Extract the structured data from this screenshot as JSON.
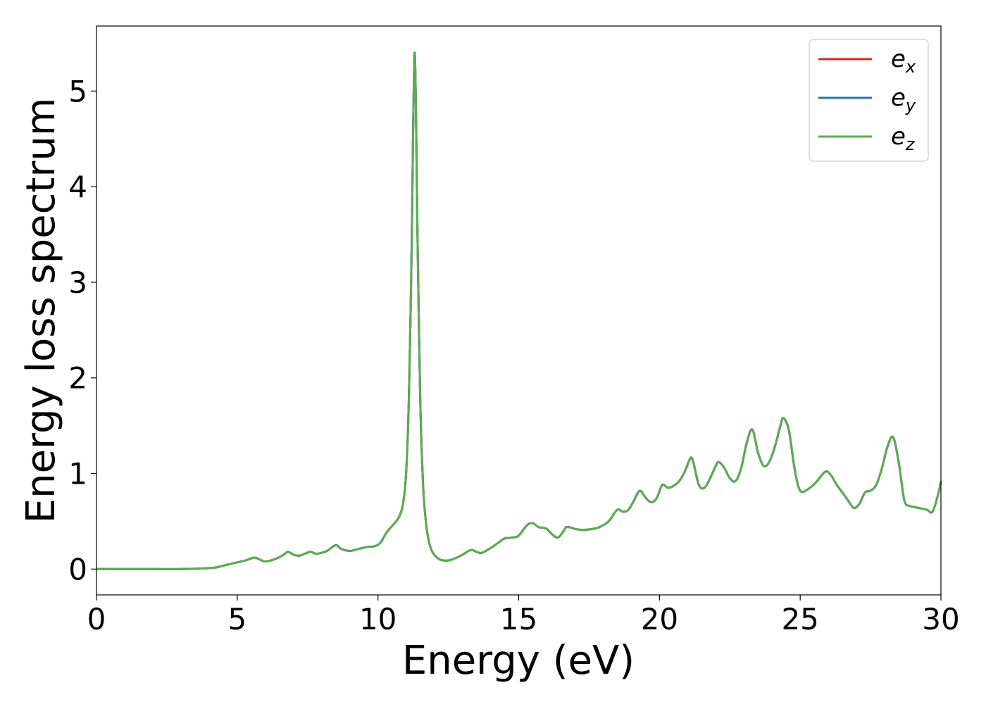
{
  "chart_data": {
    "type": "line",
    "title": "",
    "xlabel": "Energy (eV)",
    "ylabel": "Energy loss spectrum",
    "xlim": [
      0,
      30
    ],
    "ylim": [
      -0.27,
      5.68
    ],
    "xticks": [
      0,
      5,
      10,
      15,
      20,
      25,
      30
    ],
    "yticks": [
      0,
      1,
      2,
      3,
      4,
      5
    ],
    "grid": false,
    "legend": "top-right",
    "series": [
      {
        "name_base": "e",
        "name_sub": "x",
        "color": "#d62728"
      },
      {
        "name_base": "e",
        "name_sub": "y",
        "color": "#1f77b4"
      },
      {
        "name_base": "e",
        "name_sub": "z",
        "color": "#5aad50"
      }
    ],
    "shared_curve": {
      "x": [
        0,
        1,
        2,
        3,
        4,
        4.3,
        4.7,
        5,
        5.3,
        5.6,
        5.8,
        6.0,
        6.3,
        6.6,
        6.8,
        7.0,
        7.2,
        7.4,
        7.6,
        7.8,
        8.0,
        8.2,
        8.5,
        8.7,
        9.0,
        9.3,
        9.6,
        9.9,
        10.1,
        10.3,
        10.5,
        10.7,
        10.8,
        10.9,
        11.0,
        11.1,
        11.2,
        11.25,
        11.3,
        11.35,
        11.4,
        11.5,
        11.6,
        11.7,
        11.8,
        11.9,
        12.0,
        12.2,
        12.5,
        12.8,
        13.0,
        13.3,
        13.5,
        13.7,
        14.0,
        14.3,
        14.5,
        14.8,
        15.0,
        15.3,
        15.5,
        15.7,
        15.9,
        16.0,
        16.2,
        16.4,
        16.6,
        16.7,
        16.9,
        17.0,
        17.3,
        17.6,
        17.8,
        18.0,
        18.2,
        18.5,
        18.7,
        18.9,
        19.1,
        19.3,
        19.5,
        19.7,
        19.9,
        20.1,
        20.3,
        20.5,
        20.7,
        20.9,
        21.1,
        21.2,
        21.4,
        21.6,
        21.8,
        22.0,
        22.1,
        22.3,
        22.5,
        22.7,
        22.9,
        23.1,
        23.3,
        23.5,
        23.7,
        23.9,
        24.1,
        24.3,
        24.4,
        24.6,
        24.8,
        25.0,
        25.3,
        25.6,
        25.9,
        26.1,
        26.3,
        26.5,
        26.7,
        26.9,
        27.1,
        27.3,
        27.5,
        27.7,
        27.9,
        28.1,
        28.3,
        28.5,
        28.7,
        28.9,
        29.2,
        29.5,
        29.7,
        29.9,
        30.0
      ],
      "y": [
        0.0,
        0.0,
        0.0,
        0.0,
        0.01,
        0.02,
        0.05,
        0.07,
        0.09,
        0.12,
        0.1,
        0.08,
        0.1,
        0.14,
        0.18,
        0.15,
        0.14,
        0.16,
        0.18,
        0.16,
        0.17,
        0.19,
        0.25,
        0.21,
        0.19,
        0.21,
        0.23,
        0.24,
        0.28,
        0.38,
        0.45,
        0.52,
        0.58,
        0.7,
        1.0,
        1.8,
        3.4,
        4.6,
        5.4,
        4.8,
        3.6,
        1.8,
        0.9,
        0.5,
        0.3,
        0.2,
        0.15,
        0.1,
        0.09,
        0.12,
        0.15,
        0.2,
        0.18,
        0.17,
        0.22,
        0.28,
        0.32,
        0.33,
        0.35,
        0.46,
        0.48,
        0.44,
        0.43,
        0.42,
        0.36,
        0.33,
        0.4,
        0.44,
        0.43,
        0.42,
        0.41,
        0.42,
        0.43,
        0.46,
        0.5,
        0.62,
        0.6,
        0.62,
        0.72,
        0.82,
        0.75,
        0.7,
        0.74,
        0.88,
        0.85,
        0.87,
        0.92,
        1.02,
        1.16,
        1.12,
        0.88,
        0.85,
        0.95,
        1.08,
        1.12,
        1.06,
        0.95,
        0.92,
        1.05,
        1.32,
        1.46,
        1.22,
        1.08,
        1.12,
        1.28,
        1.5,
        1.58,
        1.45,
        1.05,
        0.82,
        0.84,
        0.92,
        1.02,
        0.98,
        0.88,
        0.8,
        0.72,
        0.64,
        0.68,
        0.8,
        0.82,
        0.88,
        1.05,
        1.28,
        1.38,
        1.12,
        0.72,
        0.66,
        0.64,
        0.62,
        0.6,
        0.78,
        0.92
      ]
    }
  }
}
